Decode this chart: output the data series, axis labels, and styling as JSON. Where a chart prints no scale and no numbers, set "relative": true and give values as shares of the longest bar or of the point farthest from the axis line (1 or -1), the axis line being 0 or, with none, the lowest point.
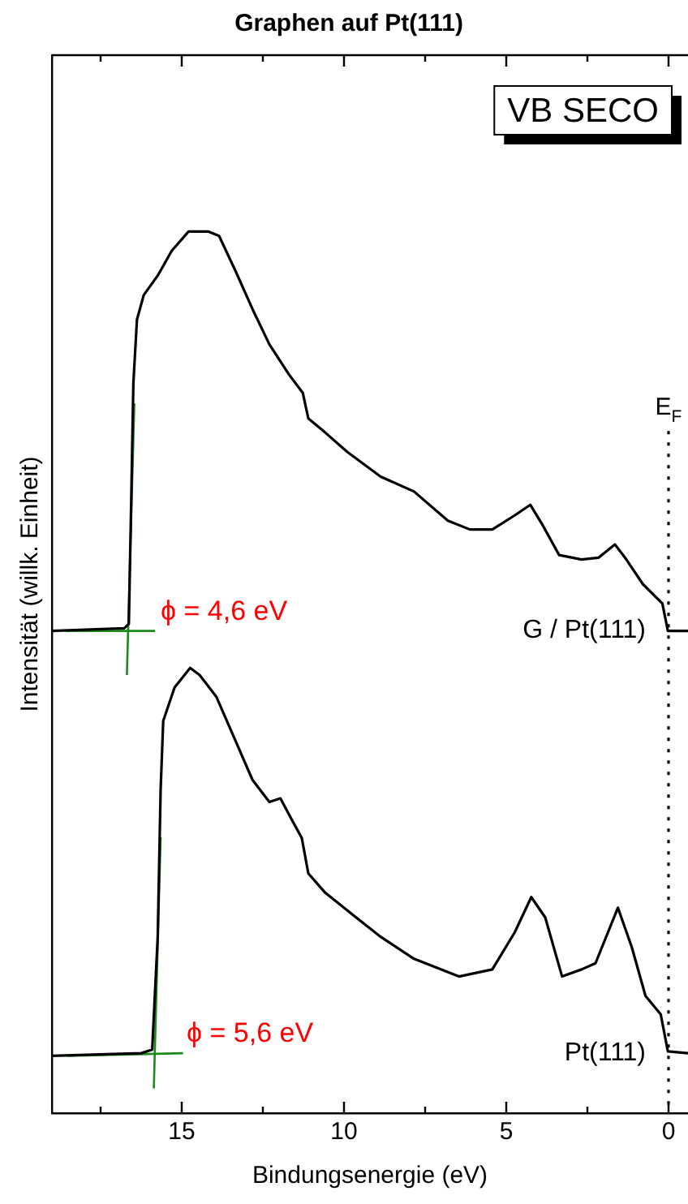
{
  "chart_data": {
    "type": "line",
    "title": "Graphen auf Pt(111)",
    "xlabel": "Bindungsenergie (eV)",
    "ylabel": "Intensität (willk. Einheit)",
    "relative": true,
    "xlim": [
      19,
      -0.6
    ],
    "xticks": [
      {
        "value": 17.5,
        "label": null
      },
      15,
      {
        "value": 12.5,
        "label": null
      },
      10,
      {
        "value": 7.5,
        "label": null
      },
      5,
      {
        "value": 2.5,
        "label": null
      },
      0
    ],
    "grid": false,
    "legend": false,
    "marker": "none",
    "line_style": "solid",
    "series": [
      {
        "name": "G / Pt(111)",
        "color": "#000000",
        "x": [
          19,
          16.77,
          16.63,
          16.56,
          16.49,
          16.38,
          16.17,
          15.74,
          15.31,
          14.79,
          14.19,
          13.85,
          13.34,
          12.82,
          12.3,
          11.7,
          11.27,
          11.1,
          10.58,
          9.9,
          8.87,
          7.84,
          6.8,
          6.12,
          5.43,
          4.74,
          4.26,
          3.88,
          3.37,
          2.68,
          2.16,
          1.65,
          1.3,
          0.79,
          0.19,
          0.02,
          -0.6
        ],
        "values": [
          0.547,
          0.55,
          0.555,
          0.688,
          0.828,
          0.9,
          0.928,
          0.95,
          0.978,
          1,
          1,
          0.995,
          0.955,
          0.912,
          0.872,
          0.838,
          0.817,
          0.788,
          0.772,
          0.75,
          0.722,
          0.705,
          0.672,
          0.662,
          0.662,
          0.678,
          0.69,
          0.667,
          0.633,
          0.628,
          0.63,
          0.645,
          0.628,
          0.6,
          0.578,
          0.547,
          0.547
        ]
      },
      {
        "name": "Pt(111)",
        "color": "#000000",
        "x": [
          19,
          16.25,
          15.91,
          15.74,
          15.65,
          15.57,
          15.22,
          14.74,
          14.45,
          13.93,
          13.34,
          12.82,
          12.3,
          11.96,
          11.61,
          11.3,
          11.1,
          10.58,
          9.73,
          8.87,
          7.84,
          6.46,
          5.43,
          4.74,
          4.23,
          3.8,
          3.28,
          2.68,
          2.25,
          1.56,
          1.13,
          0.71,
          0.24,
          0.02,
          -0.6
        ],
        "values": [
          0.065,
          0.068,
          0.072,
          0.2,
          0.367,
          0.445,
          0.483,
          0.505,
          0.497,
          0.472,
          0.422,
          0.378,
          0.353,
          0.357,
          0.333,
          0.312,
          0.272,
          0.25,
          0.225,
          0.2,
          0.175,
          0.155,
          0.163,
          0.205,
          0.245,
          0.222,
          0.155,
          0.163,
          0.17,
          0.233,
          0.188,
          0.133,
          0.112,
          0.07,
          0.068
        ]
      },
      {
        "type": "line",
        "color": "#1a8a1a",
        "x": [
          18.56,
          15.82
        ],
        "values": [
          0.547,
          0.547
        ]
      },
      {
        "type": "line",
        "color": "#1a8a1a",
        "x": [
          16.46,
          16.69
        ],
        "values": [
          0.805,
          0.497
        ]
      },
      {
        "type": "line",
        "color": "#1a8a1a",
        "x": [
          18.54,
          14.96
        ],
        "values": [
          0.065,
          0.068
        ]
      },
      {
        "type": "line",
        "color": "#1a8a1a",
        "x": [
          15.65,
          15.86
        ],
        "values": [
          0.313,
          0.028
        ]
      }
    ],
    "ref_lines": [
      {
        "axis": "x",
        "value": 0,
        "label": "E$_{F}$",
        "line_style": "dotted"
      }
    ],
    "annotations": [
      {
        "text": "ϕ = 4,6 eV",
        "x": 16.6,
        "y": 0.547
      },
      {
        "text": "ϕ = 5,6 eV",
        "x": 15.8,
        "y": 0.068
      },
      "VB SECO"
    ]
  }
}
